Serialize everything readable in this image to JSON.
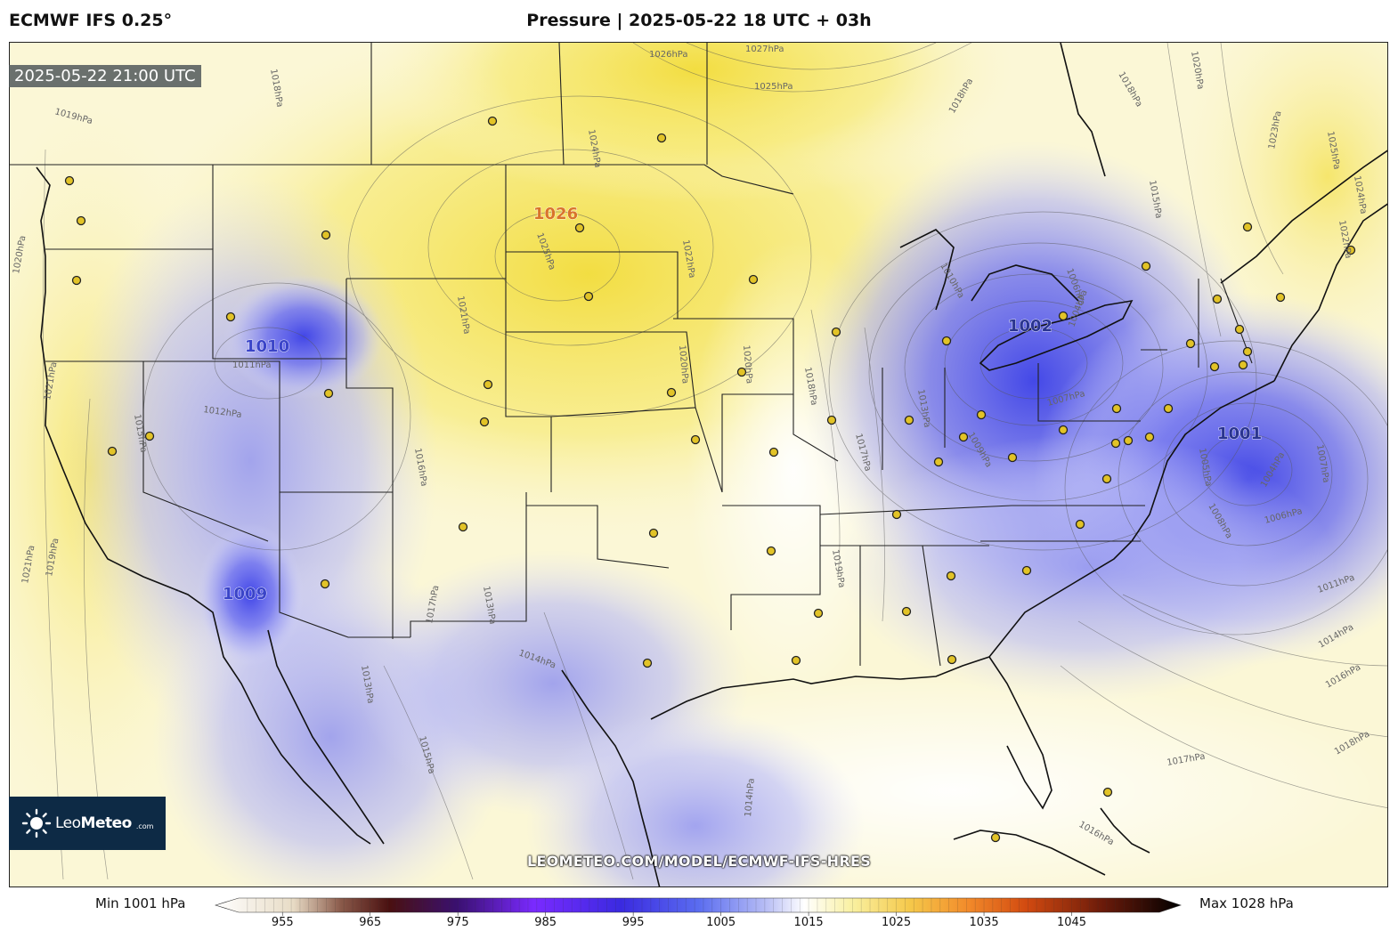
{
  "header": {
    "model": "ECMWF IFS 0.25°",
    "title": "Pressure | 2025-05-22 18 UTC + 03h"
  },
  "valid_time": "2025-05-22 21:00 UTC",
  "watermark": "LEOMETEO.COM/MODEL/ECMWF-IFS-HRES",
  "logo": {
    "name_light": "Leo",
    "name_bold": "Meteo",
    "domain": ".com"
  },
  "colorbar": {
    "min_label": "Min 1001 hPa",
    "max_label": "Max 1028 hPa",
    "ticks": [
      "955",
      "965",
      "975",
      "985",
      "995",
      "1005",
      "1015",
      "1025",
      "1035",
      "1045"
    ],
    "range": [
      950,
      1055
    ]
  },
  "centers": [
    {
      "value": "1026",
      "type": "high"
    },
    {
      "value": "1010",
      "type": "low"
    },
    {
      "value": "1009",
      "type": "low"
    },
    {
      "value": "1002",
      "type": "low"
    },
    {
      "value": "1001",
      "type": "low"
    }
  ],
  "contour_labels": [
    "1026hPa",
    "1027hPa",
    "1025hPa",
    "1024hPa",
    "1025hPa",
    "1018hPa",
    "1018hPa",
    "1020hPa",
    "1022hPa",
    "1021hPa",
    "1020hPa",
    "1017hPa",
    "1018hPa",
    "1019hPa",
    "1020hPa",
    "1010hPa",
    "1006hPa",
    "1004hPa",
    "1007hPa",
    "1013hPa",
    "1011hPa",
    "1012hPa",
    "1015hPa",
    "1017hPa",
    "1014hPa",
    "1013hPa",
    "1021hPa",
    "1016hPa",
    "1008hPa",
    "1005hPa",
    "1004hPa",
    "1007hPa",
    "1006hPa",
    "1011hPa",
    "1014hPa",
    "1016hPa",
    "1018hPa",
    "1017hPa",
    "1013hPa",
    "1015hPa",
    "1019hPa",
    "1021hPa",
    "1023hPa",
    "1025hPa",
    "1024hPa",
    "1022hPa",
    "1015hPa",
    "1018hPa",
    "1019hPa",
    "1020hPa",
    "1009hPa",
    "1016hPa",
    "1014hPa"
  ],
  "colors": {
    "high": "#f2df3c",
    "low": "#4b4ff0",
    "neutral": "#fbfbf0"
  }
}
